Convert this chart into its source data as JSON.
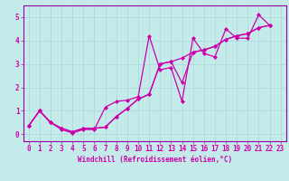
{
  "xlabel": "Windchill (Refroidissement éolien,°C)",
  "bg_color": "#c5eaea",
  "line_color": "#cc00aa",
  "grid_color": "#a8d8d8",
  "spine_color": "#9900aa",
  "xlim": [
    -0.5,
    23.5
  ],
  "ylim": [
    -0.3,
    5.5
  ],
  "xticks": [
    0,
    1,
    2,
    3,
    4,
    5,
    6,
    7,
    8,
    9,
    10,
    11,
    12,
    13,
    14,
    15,
    16,
    17,
    18,
    19,
    20,
    21,
    22,
    23
  ],
  "yticks": [
    0,
    1,
    2,
    3,
    4,
    5
  ],
  "line1_x": [
    0,
    1,
    2,
    3,
    4,
    5,
    6,
    7,
    8,
    9,
    10,
    11,
    12,
    13,
    14,
    15,
    16,
    17,
    18,
    19,
    20,
    21,
    22
  ],
  "line1_y": [
    0.35,
    1.0,
    0.5,
    0.2,
    0.05,
    0.2,
    0.2,
    1.15,
    1.4,
    1.45,
    1.6,
    4.2,
    2.75,
    2.85,
    1.4,
    4.1,
    3.45,
    3.3,
    4.5,
    4.1,
    4.1,
    5.1,
    4.65
  ],
  "line2_x": [
    0,
    1,
    2,
    3,
    4,
    5,
    6,
    7,
    8,
    9,
    10,
    11,
    12,
    13,
    14,
    15,
    16,
    17,
    18,
    19,
    20,
    21,
    22
  ],
  "line2_y": [
    0.35,
    1.0,
    0.5,
    0.25,
    0.1,
    0.25,
    0.25,
    0.3,
    0.75,
    1.1,
    1.5,
    1.7,
    3.0,
    3.1,
    3.25,
    3.5,
    3.6,
    3.75,
    4.05,
    4.2,
    4.3,
    4.55,
    4.65
  ],
  "line3_x": [
    0,
    1,
    2,
    3,
    4,
    5,
    6,
    7,
    8,
    9,
    10,
    11,
    12,
    13,
    14,
    15,
    16,
    17,
    18,
    19,
    20,
    21,
    22
  ],
  "line3_y": [
    0.35,
    1.0,
    0.5,
    0.25,
    0.1,
    0.25,
    0.25,
    0.3,
    0.75,
    1.1,
    1.5,
    1.7,
    3.0,
    3.1,
    2.2,
    3.5,
    3.6,
    3.75,
    4.05,
    4.2,
    4.3,
    4.55,
    4.65
  ],
  "xlabel_fontsize": 5.5,
  "tick_fontsize": 5.5,
  "marker_size": 2.2,
  "linewidth": 0.9
}
